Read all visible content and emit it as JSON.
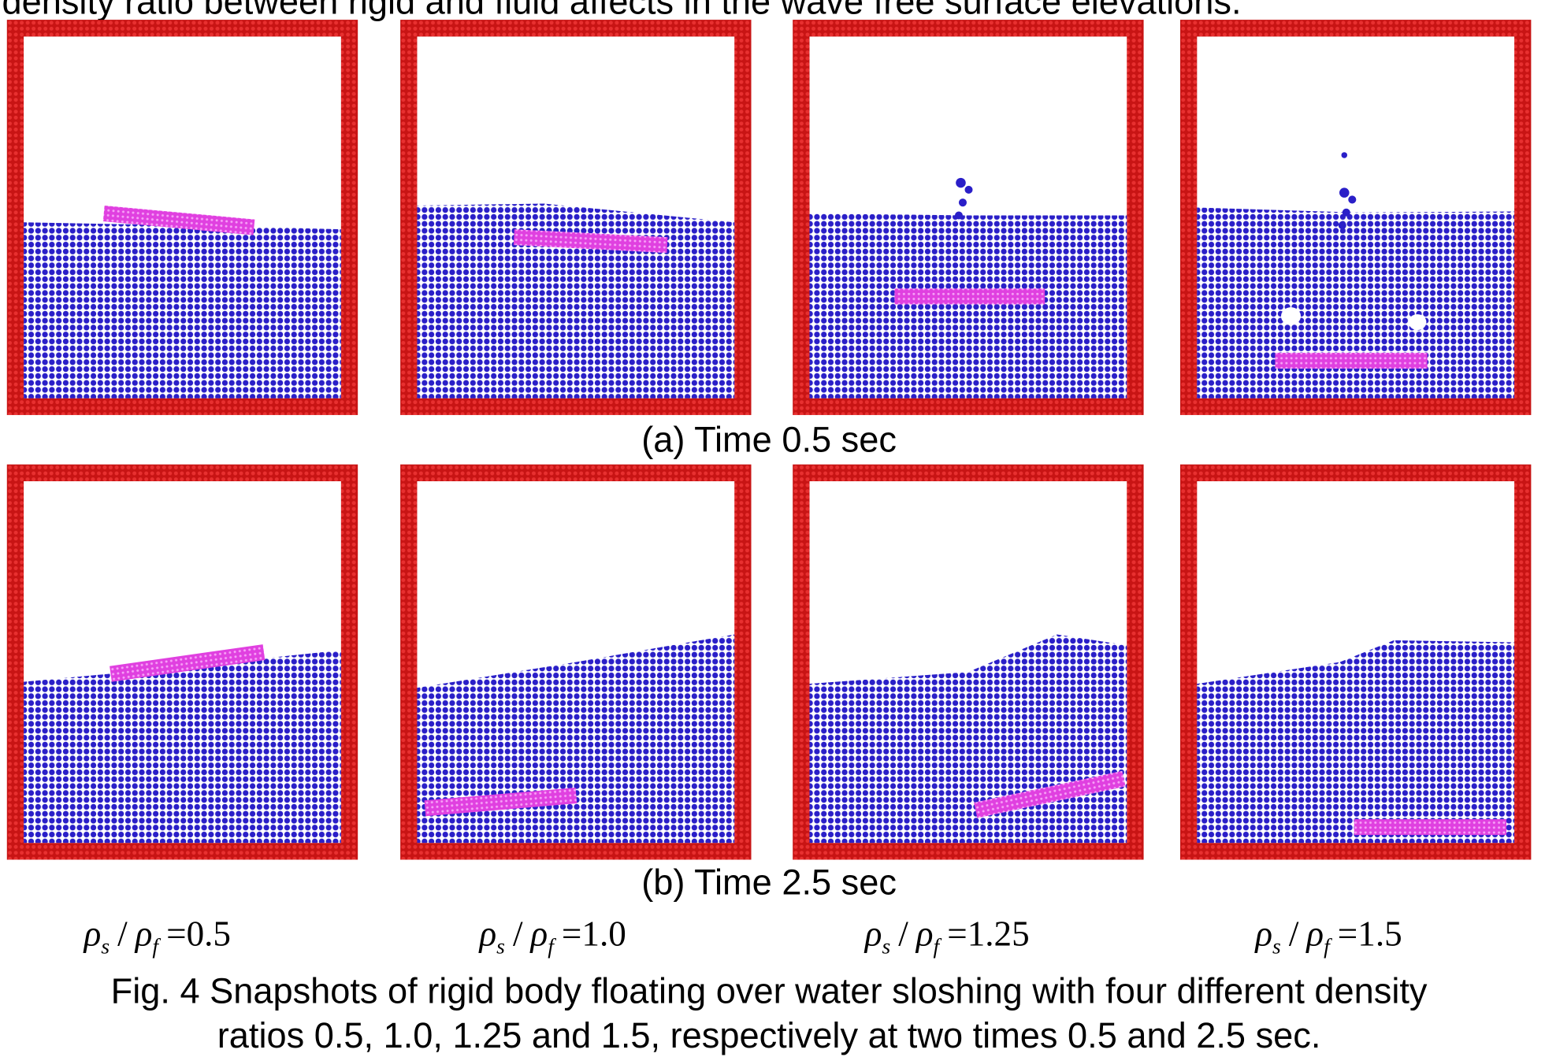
{
  "header": {
    "text": "density ratio between rigid and fluid affects in the wave free surface elevations."
  },
  "rows": [
    {
      "caption": "(a) Time 0.5 sec"
    },
    {
      "caption": "(b) Time 2.5 sec"
    }
  ],
  "ratio_labels": [
    {
      "rho_s": "ρ",
      "s": "s",
      "slash": "/",
      "rho_f": "ρ",
      "f": "f",
      "equals": "=",
      "value": "0.5"
    },
    {
      "rho_s": "ρ",
      "s": "s",
      "slash": "/",
      "rho_f": "ρ",
      "f": "f",
      "equals": "=",
      "value": "1.0"
    },
    {
      "rho_s": "ρ",
      "s": "s",
      "slash": "/",
      "rho_f": "ρ",
      "f": "f",
      "equals": "=",
      "value": "1.25"
    },
    {
      "rho_s": "ρ",
      "s": "s",
      "slash": "/",
      "rho_f": "ρ",
      "f": "f",
      "equals": "=",
      "value": "1.5"
    }
  ],
  "figure_caption": {
    "line1": "Fig. 4 Snapshots of rigid body floating over water sloshing with four different density",
    "line2": "ratios 0.5, 1.0, 1.25 and 1.5, respectively at two times 0.5 and 2.5 sec."
  }
}
